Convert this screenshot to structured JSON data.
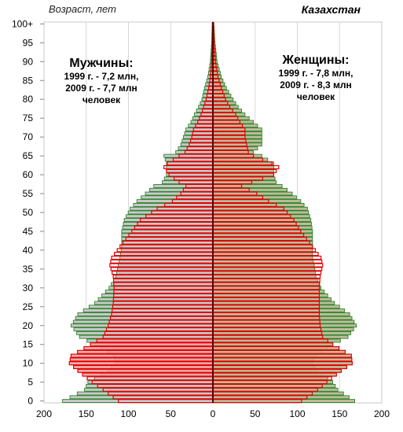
{
  "chart_data": {
    "type": "bar",
    "title": "Казахстан",
    "ylabel": "Возраст, лет",
    "xlabel": "",
    "age_tick_labels": [
      "0",
      "5",
      "10",
      "15",
      "20",
      "25",
      "30",
      "35",
      "40",
      "45",
      "50",
      "55",
      "60",
      "65",
      "70",
      "75",
      "80",
      "85",
      "90",
      "95",
      "100+"
    ],
    "x_tick_labels": [
      "200",
      "150",
      "100",
      "50",
      "0",
      "50",
      "100",
      "150",
      "200"
    ],
    "xlim": [
      -200,
      200
    ],
    "grid": true,
    "colors": {
      "series_1999": "#1a7a1a",
      "series_2009": "#e00000",
      "fill_male": "#c8c8c8",
      "fill_female": "#bcbc9a",
      "fill_2009_young": "#f4a0a0",
      "fill_2009_young_female": "#b8b890",
      "axis_line": "#5a0000"
    },
    "legend": {
      "male": {
        "head": "Мужчины:",
        "line1": "1999 г. - 7,2 млн,",
        "line2": "2009 г. - 7,7 млн",
        "line3": "человек"
      },
      "female": {
        "head": "Женщины:",
        "line1": "1999 г. - 7,8 млн,",
        "line2": "2009 г. - 8,3 млн",
        "line3": "человек"
      }
    },
    "anchors": {
      "ages": [
        0,
        3,
        5,
        8,
        10,
        12,
        15,
        17,
        20,
        23,
        26,
        30,
        33,
        36,
        38,
        41,
        45,
        48,
        51,
        53,
        55,
        57,
        58,
        60,
        62,
        63,
        65,
        66,
        68,
        70,
        72,
        74,
        76,
        78,
        80,
        83,
        86,
        90,
        95,
        100
      ],
      "male_1999": [
        178,
        152,
        148,
        125,
        115,
        118,
        140,
        158,
        168,
        160,
        140,
        123,
        115,
        112,
        110,
        108,
        108,
        105,
        98,
        90,
        80,
        70,
        60,
        55,
        55,
        55,
        58,
        44,
        38,
        35,
        32,
        26,
        22,
        17,
        13,
        10,
        6,
        3,
        1.5,
        0.8
      ],
      "female_1999": [
        168,
        148,
        142,
        124,
        118,
        122,
        142,
        160,
        170,
        162,
        144,
        128,
        122,
        120,
        118,
        118,
        118,
        116,
        112,
        104,
        94,
        82,
        75,
        72,
        72,
        72,
        58,
        48,
        58,
        58,
        58,
        48,
        38,
        30,
        24,
        16,
        10,
        5,
        2.5,
        1.2
      ],
      "male_2009": [
        112,
        130,
        143,
        160,
        170,
        168,
        145,
        130,
        124,
        120,
        118,
        117,
        118,
        122,
        120,
        110,
        96,
        86,
        66,
        48,
        38,
        32,
        40,
        52,
        58,
        54,
        40,
        33,
        28,
        25,
        23,
        18,
        14,
        11,
        8,
        5,
        3,
        1.5,
        0.8,
        0.4
      ],
      "female_2009": [
        105,
        124,
        135,
        152,
        165,
        164,
        142,
        130,
        127,
        126,
        126,
        126,
        127,
        130,
        128,
        118,
        104,
        96,
        84,
        66,
        52,
        34,
        46,
        72,
        78,
        70,
        48,
        42,
        40,
        38,
        38,
        32,
        27,
        20,
        15,
        10,
        6,
        3,
        1.5,
        0.8
      ]
    }
  }
}
